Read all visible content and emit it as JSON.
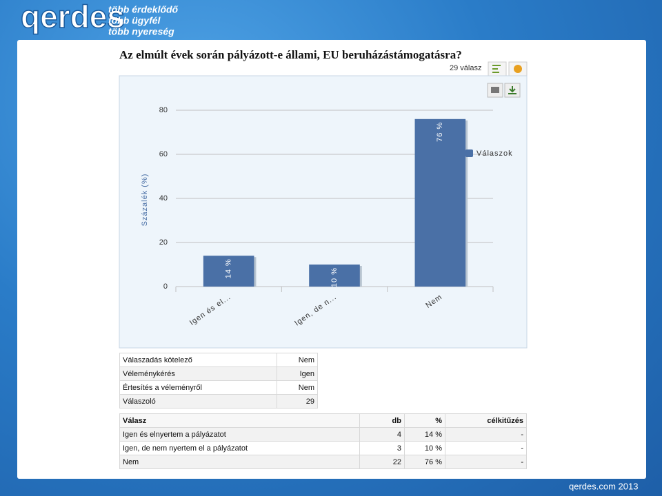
{
  "header": {
    "logo": "qerdes",
    "taglines": [
      "több érdeklődő",
      "több ügyfél",
      "több nyereség"
    ]
  },
  "question": "Az elmúlt évek során pályázott-e állami, EU beruházástámogatásra?",
  "response_count": "29 válasz",
  "chart_data": {
    "type": "bar",
    "ylabel": "Százalék (%)",
    "categories": [
      "Igen és el...",
      "Igen, de n...",
      "Nem"
    ],
    "series": [
      {
        "name": "Válaszok",
        "color": "#4a70a6",
        "values": [
          14,
          10,
          76
        ],
        "value_labels": [
          "14 %",
          "10 %",
          "76 %"
        ]
      }
    ],
    "ylim": [
      0,
      80
    ],
    "yticks": [
      0,
      20,
      40,
      60,
      80
    ],
    "grid": true,
    "legend": "right"
  },
  "settings_table": {
    "rows": [
      [
        "Válaszadás kötelező",
        "Nem"
      ],
      [
        "Véleménykérés",
        "Igen"
      ],
      [
        "Értesítés a véleményről",
        "Nem"
      ],
      [
        "Válaszoló",
        "29"
      ]
    ]
  },
  "answers_table": {
    "header": [
      "Válasz",
      "db",
      "%",
      "célkitűzés"
    ],
    "rows": [
      [
        "Igen és elnyertem a pályázatot",
        "4",
        "14 %",
        "-"
      ],
      [
        "Igen, de nem nyertem el a pályázatot",
        "3",
        "10 %",
        "-"
      ],
      [
        "Nem",
        "22",
        "76 %",
        "-"
      ]
    ]
  },
  "footer": "qerdes.com 2013"
}
